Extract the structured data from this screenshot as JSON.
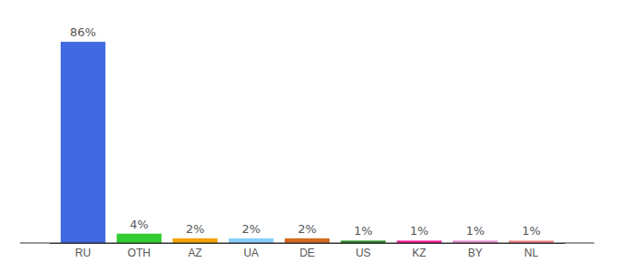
{
  "chart_data": {
    "type": "bar",
    "categories": [
      "RU",
      "OTH",
      "AZ",
      "UA",
      "DE",
      "US",
      "KZ",
      "BY",
      "NL"
    ],
    "values": [
      86,
      4,
      2,
      2,
      2,
      1,
      1,
      1,
      1
    ],
    "value_labels": [
      "86%",
      "4%",
      "2%",
      "2%",
      "2%",
      "1%",
      "1%",
      "1%",
      "1%"
    ],
    "colors": [
      "#4169e1",
      "#32cd32",
      "#f5a100",
      "#87cefa",
      "#d2691e",
      "#228b22",
      "#ff1493",
      "#e88ad0",
      "#f08080"
    ],
    "ylim": [
      0,
      100
    ],
    "data_labels": true,
    "tick_labels": "x"
  }
}
